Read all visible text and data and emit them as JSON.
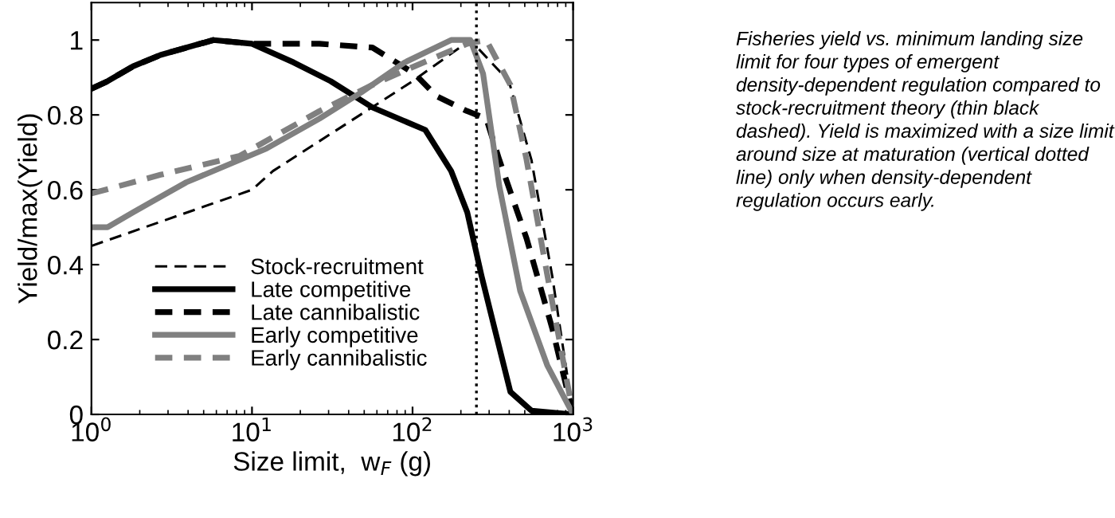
{
  "chart_data": {
    "type": "line",
    "xlabel": "Size limit,  w$_{F}$ (g)",
    "ylabel": "Yield/max(Yield)",
    "log": "x",
    "xlim": [
      1,
      1000
    ],
    "xticks": [
      {
        "value": 1,
        "label": "10$^{0}$"
      },
      {
        "value": 10,
        "label": "10$^{1}$"
      },
      {
        "value": 100,
        "label": "10$^{2}$"
      },
      {
        "value": 1000,
        "label": "10$^{3}$"
      }
    ],
    "ylim": [
      0,
      1.1
    ],
    "yticks": [
      0,
      0.2,
      0.4,
      0.6,
      0.8,
      1
    ],
    "grid": false,
    "legend": "bottom left",
    "marker": "none",
    "series": [
      {
        "name": "Stock-recruitment",
        "color": "#000000",
        "line_style": "dashed",
        "x": [
          1,
          10,
          13.5,
          100,
          229,
          398,
          550,
          741,
          1000
        ],
        "values": [
          0.45,
          0.6,
          0.65,
          0.89,
          1.0,
          0.89,
          0.68,
          0.37,
          0
        ]
      },
      {
        "name": "Late competitive",
        "color": "#000000",
        "line_style": "solid",
        "x": [
          1,
          1.26,
          1.82,
          2.69,
          5.75,
          10,
          18.2,
          30.9,
          56.2,
          120,
          174,
          219,
          269,
          324,
          407,
          550,
          1000
        ],
        "values": [
          0.87,
          0.89,
          0.93,
          0.96,
          1.0,
          0.99,
          0.94,
          0.89,
          0.82,
          0.76,
          0.65,
          0.54,
          0.37,
          0.23,
          0.06,
          0.01,
          0
        ]
      },
      {
        "name": "Late cannibalistic",
        "color": "#000000",
        "line_style": "dashed",
        "x": [
          1,
          1.26,
          1.82,
          2.69,
          5.75,
          10,
          26.3,
          56.2,
          103,
          141,
          219,
          288,
          347,
          513,
          741,
          1000
        ],
        "values": [
          0.87,
          0.89,
          0.93,
          0.96,
          1.0,
          0.99,
          0.99,
          0.98,
          0.91,
          0.85,
          0.81,
          0.79,
          0.68,
          0.47,
          0.23,
          0
        ]
      },
      {
        "name": "Early competitive",
        "color": "#808080",
        "line_style": "solid",
        "x": [
          1,
          1.26,
          1.82,
          3.9,
          12.3,
          26.3,
          47.9,
          89.1,
          174,
          229,
          275,
          347,
          468,
          692,
          1000
        ],
        "values": [
          0.5,
          0.5,
          0.54,
          0.62,
          0.71,
          0.79,
          0.86,
          0.94,
          1.0,
          1.0,
          0.91,
          0.61,
          0.33,
          0.13,
          0
        ]
      },
      {
        "name": "Early cannibalistic",
        "color": "#808080",
        "line_style": "dashed",
        "x": [
          1,
          2.69,
          8.32,
          26.3,
          56.2,
          103,
          219,
          288,
          407,
          513,
          692,
          1000
        ],
        "values": [
          0.59,
          0.64,
          0.69,
          0.81,
          0.88,
          0.93,
          0.99,
          1.0,
          0.88,
          0.68,
          0.37,
          0
        ]
      }
    ],
    "ref_lines": [
      {
        "axis": "x",
        "value": 250,
        "color": "#000000",
        "line_style": "dotted"
      }
    ],
    "annotations": [
      "Fisheries yield vs. minimum landing size limit for four types of emergent density-dependent regulation compared to stock-recruitment theory (thin black dashed). Yield is maximized with a size limit around size at maturation (vertical dotted line) only when density-dependent regulation occurs early."
    ]
  }
}
